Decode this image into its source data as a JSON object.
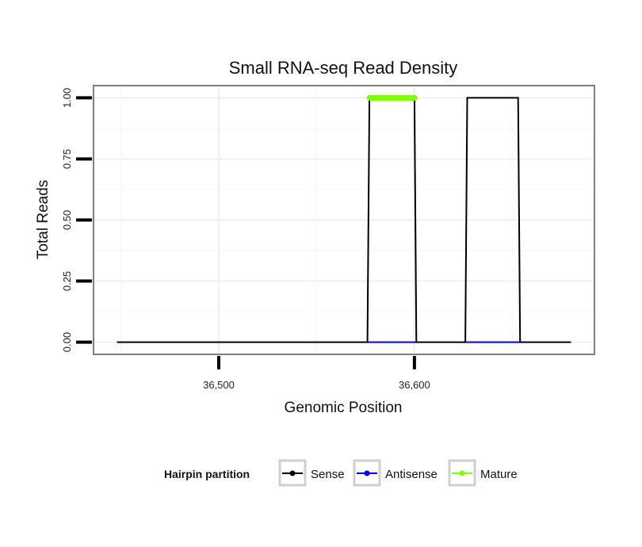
{
  "chart_data": {
    "type": "line",
    "title": "Small RNA-seq Read Density",
    "xlabel": "Genomic Position",
    "ylabel": "Total Reads",
    "xlim": [
      36436,
      36692
    ],
    "ylim": [
      -0.05,
      1.05
    ],
    "x_ticks": [
      36500,
      36600
    ],
    "x_tick_labels": [
      "36,500",
      "36,600"
    ],
    "y_ticks": [
      0,
      0.25,
      0.5,
      0.75,
      1.0
    ],
    "y_tick_labels": [
      "0.00",
      "0.25",
      "0.50",
      "0.75",
      "1.00"
    ],
    "grid": true,
    "legend": {
      "title": "Hairpin partition",
      "position": "bottom"
    },
    "series": [
      {
        "name": "Sense",
        "color": "#000000",
        "x": [
          36448,
          36576,
          36577,
          36600,
          36601,
          36626,
          36627,
          36653,
          36654,
          36680
        ],
        "y": [
          0,
          0,
          1,
          1,
          0,
          0,
          1,
          1,
          0,
          0
        ]
      },
      {
        "name": "Antisense",
        "color": "#0000ff",
        "x": [
          36576,
          36601,
          36626,
          36654
        ],
        "y": [
          0,
          0,
          0,
          0
        ],
        "segments": [
          [
            0,
            1
          ],
          [
            2,
            3
          ]
        ]
      },
      {
        "name": "Mature",
        "color": "#7fff00",
        "x": [
          36577,
          36577.5,
          36578,
          36579,
          36580,
          36581,
          36582,
          36583,
          36584,
          36585,
          36586,
          36587,
          36588,
          36589,
          36590,
          36591,
          36592,
          36593,
          36594,
          36595,
          36596,
          36597,
          36598,
          36599,
          36600
        ],
        "y": [
          1,
          1,
          1,
          1,
          1,
          1,
          1,
          1,
          1,
          1,
          1,
          1,
          1,
          1,
          1,
          1,
          1,
          1,
          1,
          1,
          1,
          1,
          1,
          1,
          1
        ]
      }
    ]
  }
}
